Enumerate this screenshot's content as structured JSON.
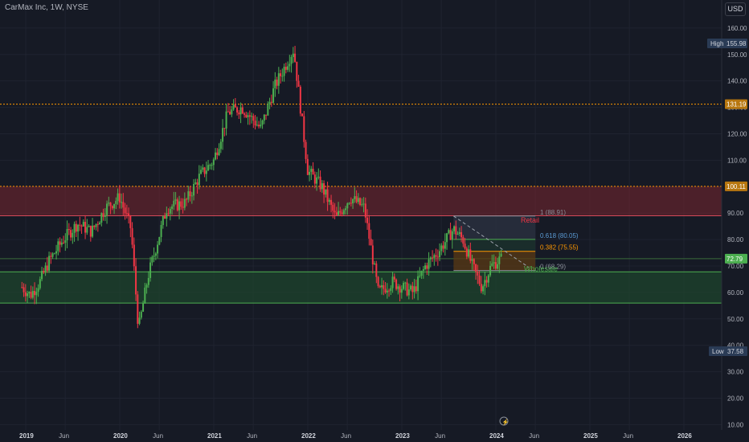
{
  "header": {
    "title": "CarMax Inc, 1W, NYSE",
    "currency": "USD"
  },
  "colors": {
    "bg": "#161a25",
    "up": "#4caf50",
    "down": "#f23645",
    "grid": "#1f2330",
    "resistance_zone": "#7a2630",
    "support_zone": "#1e4a2c",
    "orange": "#ff9800"
  },
  "markers": {
    "high_label": "High",
    "high_value": "155.98",
    "low_label": "Low",
    "low_value": "37.58",
    "last_price": "72.79",
    "level_131": "131.19",
    "level_100": "100.11"
  },
  "fib": {
    "level_1": "1 (88.91)",
    "level_0618": "0.618 (80.05)",
    "level_0382": "0.382 (75.55)",
    "level_0": "0 (68.29)",
    "label_retail": "Retail",
    "label_wholesale": "Wholesale"
  },
  "chart_data": {
    "type": "candlestick",
    "title": "CarMax Inc, 1W, NYSE",
    "ylim": [
      8,
      163
    ],
    "y_ticks": [
      "160.00",
      "150.00",
      "140.00",
      "130.00",
      "120.00",
      "110.00",
      "100.00",
      "90.00",
      "80.00",
      "70.00",
      "60.00",
      "50.00",
      "40.00",
      "30.00",
      "20.00",
      "10.00"
    ],
    "x_ticks": [
      "2019",
      "Jun",
      "2020",
      "Jun",
      "2021",
      "Jun",
      "2022",
      "Jun",
      "2023",
      "Jun",
      "2024",
      "Jun",
      "2025",
      "Jun",
      "2026"
    ],
    "horizontal_levels": [
      131.19,
      100.11
    ],
    "resistance_zone": [
      89,
      100.11
    ],
    "support_zone": [
      56,
      67.8
    ],
    "fib_retracement": {
      "0": 68.29,
      "0.382": 75.55,
      "0.618": 80.05,
      "1": 88.91
    },
    "closes": [
      {
        "t": 2018.96,
        "c": 62
      },
      {
        "t": 2019.05,
        "c": 59
      },
      {
        "t": 2019.15,
        "c": 64
      },
      {
        "t": 2019.25,
        "c": 72
      },
      {
        "t": 2019.4,
        "c": 80
      },
      {
        "t": 2019.55,
        "c": 86
      },
      {
        "t": 2019.7,
        "c": 83
      },
      {
        "t": 2019.85,
        "c": 92
      },
      {
        "t": 2020.0,
        "c": 96
      },
      {
        "t": 2020.12,
        "c": 84
      },
      {
        "t": 2020.2,
        "c": 46
      },
      {
        "t": 2020.3,
        "c": 66
      },
      {
        "t": 2020.5,
        "c": 92
      },
      {
        "t": 2020.7,
        "c": 94
      },
      {
        "t": 2020.85,
        "c": 104
      },
      {
        "t": 2021.0,
        "c": 110
      },
      {
        "t": 2021.15,
        "c": 128
      },
      {
        "t": 2021.3,
        "c": 130
      },
      {
        "t": 2021.5,
        "c": 122
      },
      {
        "t": 2021.65,
        "c": 138
      },
      {
        "t": 2021.85,
        "c": 152
      },
      {
        "t": 2022.0,
        "c": 106
      },
      {
        "t": 2022.15,
        "c": 100
      },
      {
        "t": 2022.3,
        "c": 88
      },
      {
        "t": 2022.45,
        "c": 96
      },
      {
        "t": 2022.6,
        "c": 92
      },
      {
        "t": 2022.75,
        "c": 60
      },
      {
        "t": 2022.9,
        "c": 64
      },
      {
        "t": 2023.0,
        "c": 62
      },
      {
        "t": 2023.12,
        "c": 60
      },
      {
        "t": 2023.25,
        "c": 70
      },
      {
        "t": 2023.4,
        "c": 76
      },
      {
        "t": 2023.55,
        "c": 84
      },
      {
        "t": 2023.65,
        "c": 80
      },
      {
        "t": 2023.75,
        "c": 70
      },
      {
        "t": 2023.85,
        "c": 62
      },
      {
        "t": 2023.95,
        "c": 70
      },
      {
        "t": 2024.05,
        "c": 72.79
      }
    ]
  }
}
